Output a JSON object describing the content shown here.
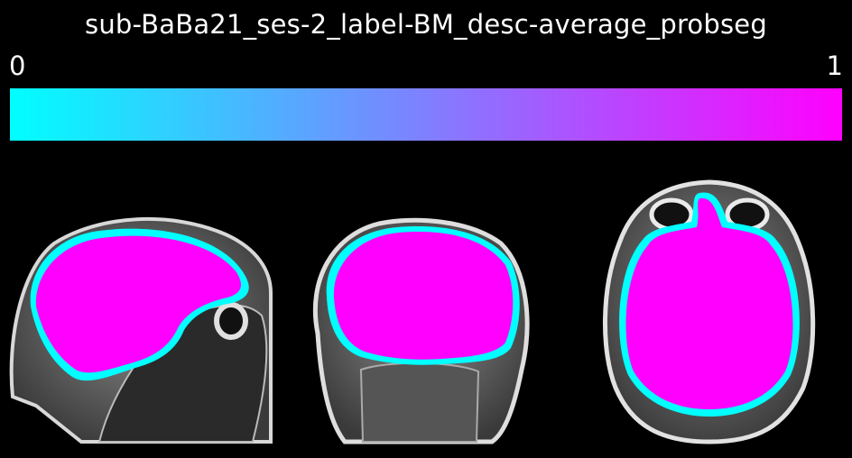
{
  "title": "sub-BaBa21_ses-2_label-BM_desc-average_probseg",
  "colorbar": {
    "min_label": "0",
    "max_label": "1",
    "colors": [
      "#00ffff",
      "#ff00ff"
    ]
  },
  "views": [
    {
      "name": "sagittal"
    },
    {
      "name": "coronal"
    },
    {
      "name": "axial"
    }
  ],
  "colors": {
    "background": "#000000",
    "mask_low": "#00ffff",
    "mask_high": "#ff00ff"
  }
}
